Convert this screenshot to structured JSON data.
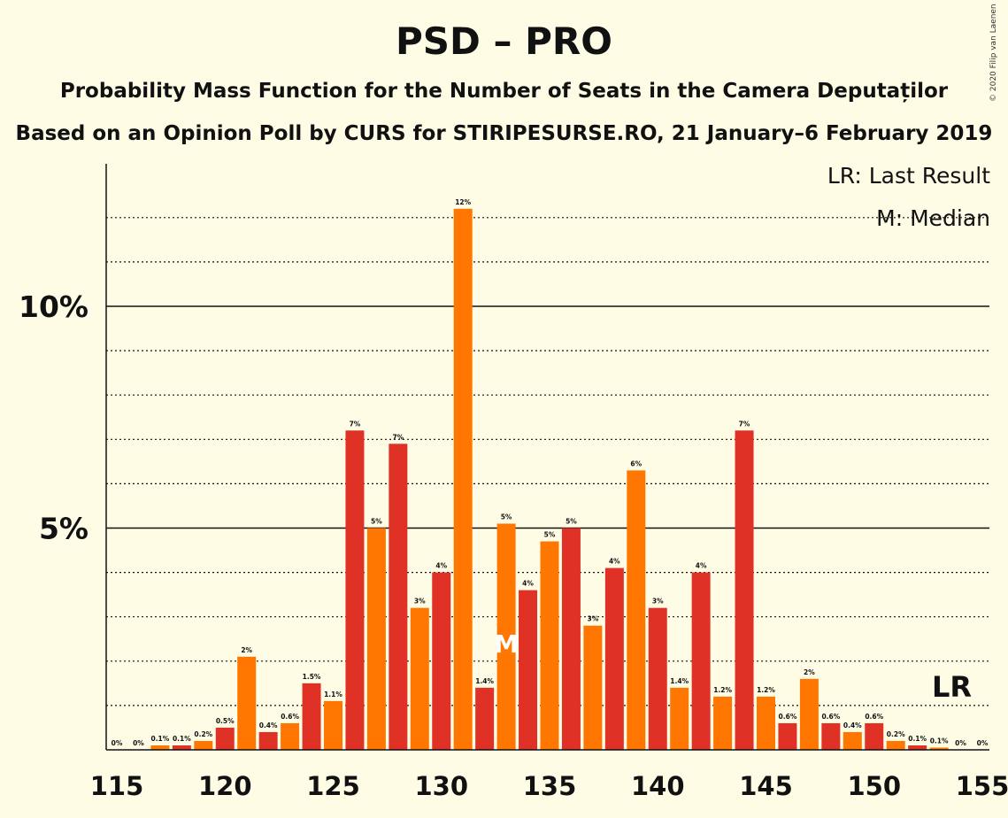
{
  "title": "PSD – PRO",
  "subtitle1": "Probability Mass Function for the Number of Seats in the Camera Deputaților",
  "subtitle2": "Based on an Opinion Poll by CURS for STIRIPESURSE.RO, 21 January–6 February 2019",
  "copyright": "© 2020 Filip van Laenen",
  "legend": {
    "lr": "LR: Last Result",
    "m": "M: Median"
  },
  "colors": {
    "background": "#FFFCE6",
    "red": "#E03127",
    "orange": "#FF7700",
    "text": "#111111"
  },
  "chart_data": {
    "type": "bar",
    "x": [
      115,
      116,
      117,
      118,
      119,
      120,
      121,
      122,
      123,
      124,
      125,
      126,
      127,
      128,
      129,
      130,
      131,
      132,
      133,
      134,
      135,
      136,
      137,
      138,
      139,
      140,
      141,
      142,
      143,
      144,
      145,
      146,
      147,
      148,
      149,
      150,
      151,
      152,
      153,
      154,
      155
    ],
    "values": [
      0,
      0,
      0.1,
      0.1,
      0.2,
      0.5,
      2.1,
      0.4,
      0.6,
      1.5,
      1.1,
      7.2,
      5.0,
      6.9,
      3.2,
      4.0,
      12.2,
      1.4,
      5.1,
      3.6,
      4.7,
      5.0,
      2.8,
      4.1,
      6.3,
      3.2,
      1.4,
      4.0,
      1.2,
      7.2,
      1.2,
      0.6,
      1.6,
      0.6,
      0.4,
      0.6,
      0.2,
      0.1,
      0.05,
      0,
      0
    ],
    "labels": [
      "0%",
      "0%",
      "0.1%",
      "0.1%",
      "0.2%",
      "0.5%",
      "2%",
      "0.4%",
      "0.6%",
      "1.5%",
      "1.1%",
      "7%",
      "5%",
      "7%",
      "3%",
      "4%",
      "12%",
      "1.4%",
      "5%",
      "4%",
      "5%",
      "5%",
      "3%",
      "4%",
      "6%",
      "3%",
      "1.4%",
      "4%",
      "1.2%",
      "7%",
      "1.2%",
      "0.6%",
      "2%",
      "0.6%",
      "0.4%",
      "0.6%",
      "0.2%",
      "0.1%",
      "0.1%",
      "0%",
      "0%"
    ],
    "x_ticks": [
      "115",
      "120",
      "125",
      "130",
      "135",
      "140",
      "145",
      "150",
      "155"
    ],
    "y_ticks": [
      {
        "value": 5,
        "label": "5%"
      },
      {
        "value": 10,
        "label": "10%"
      }
    ],
    "ylim": [
      0,
      13
    ],
    "xlim": [
      114.5,
      155.5
    ],
    "median": 133,
    "median_label": "M",
    "last_result": 154,
    "last_result_label": "LR",
    "grid": "dotted every 1%, solid at 5% and 10%"
  }
}
